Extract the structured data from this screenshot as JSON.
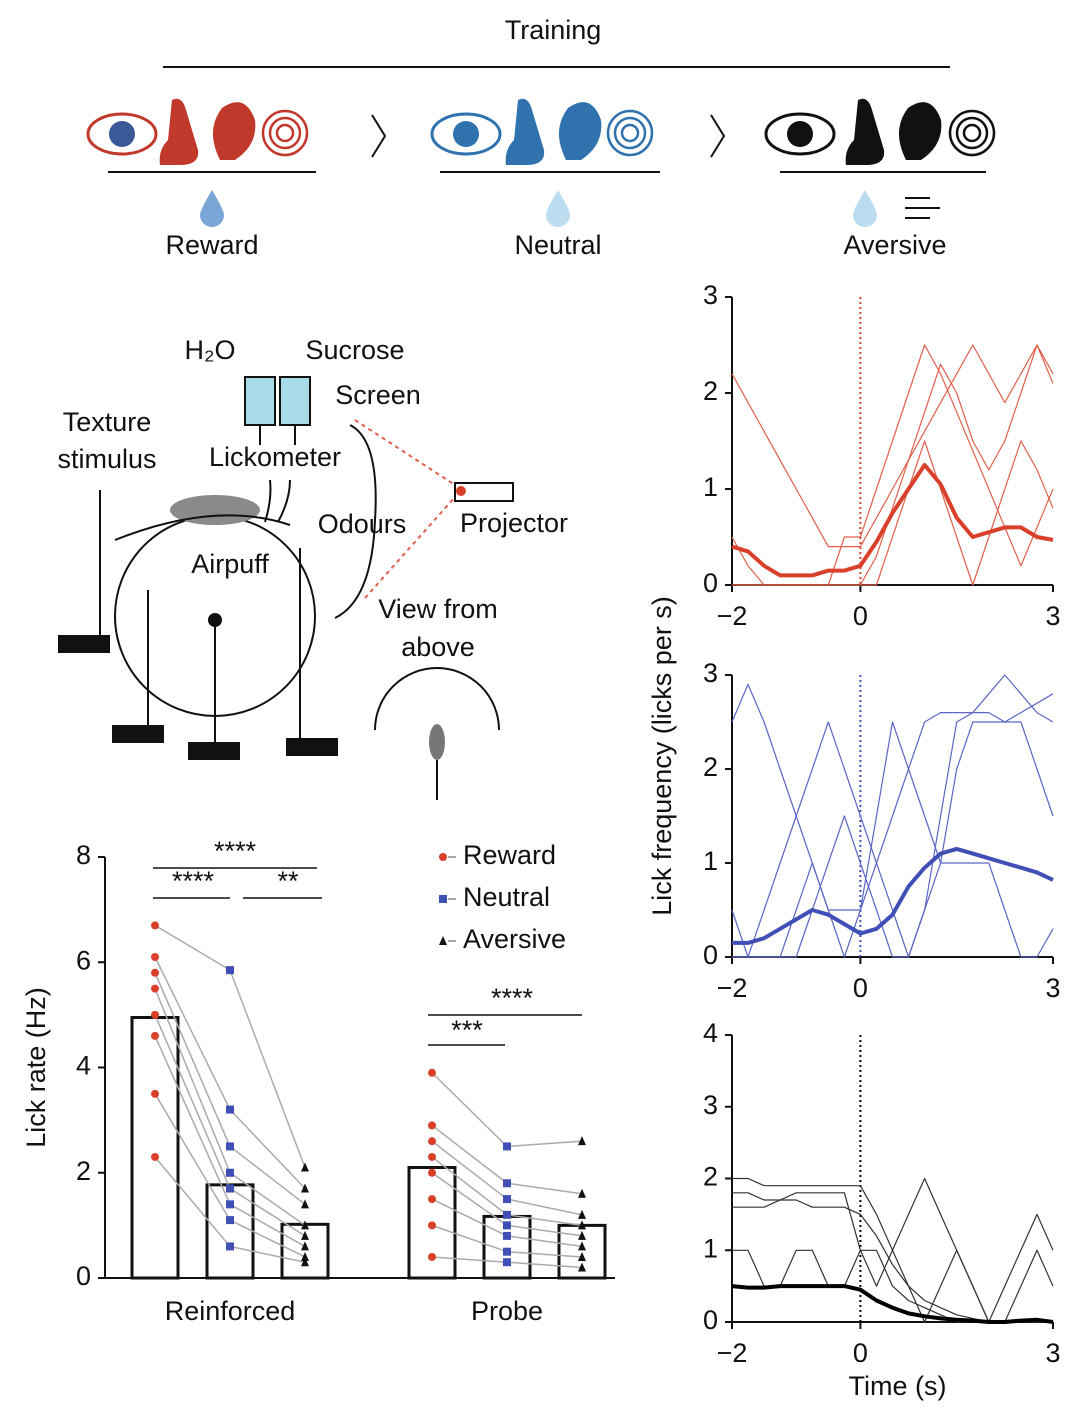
{
  "diagram": {
    "training": "Training",
    "reward": "Reward",
    "neutral": "Neutral",
    "aversive": "Aversive",
    "h2o": "H₂O",
    "sucrose": "Sucrose",
    "screen": "Screen",
    "texture_1": "Texture",
    "texture_2": "stimulus",
    "lickometer": "Lickometer",
    "odours": "Odours",
    "projector": "Projector",
    "airpuff": "Airpuff",
    "view_1": "View from",
    "view_2": "above"
  },
  "chart_data": [
    {
      "type": "bar",
      "ylabel": "Lick rate (Hz)",
      "categories": [
        "Reinforced",
        "Probe"
      ],
      "ylim": [
        0,
        8
      ],
      "yticks": [
        0,
        2,
        4,
        6,
        8
      ],
      "annotations": [
        "****",
        "****",
        "**",
        "***",
        "****"
      ],
      "series": [
        {
          "name": "Reward",
          "color": "#d9402b",
          "marker": "circle",
          "values": [
            4.95,
            2.1
          ],
          "points": [
            [
              6.7,
              6.1,
              5.8,
              5.5,
              5.0,
              4.6,
              3.5,
              2.3
            ],
            [
              3.9,
              2.9,
              2.6,
              2.3,
              2.0,
              1.5,
              1.0,
              0.4
            ]
          ]
        },
        {
          "name": "Neutral",
          "color": "#3f4fb5",
          "marker": "square",
          "values": [
            1.77,
            1.17
          ],
          "points": [
            [
              5.85,
              3.2,
              2.5,
              2.0,
              1.7,
              1.4,
              1.1,
              0.6
            ],
            [
              2.5,
              1.8,
              1.5,
              1.2,
              1.0,
              0.8,
              0.5,
              0.3
            ]
          ]
        },
        {
          "name": "Aversive",
          "color": "#111111",
          "marker": "triangle",
          "values": [
            1.02,
            1.0
          ],
          "points": [
            [
              2.1,
              1.7,
              1.4,
              1.0,
              0.8,
              0.6,
              0.4,
              0.3
            ],
            [
              2.6,
              1.6,
              1.2,
              1.0,
              0.8,
              0.6,
              0.4,
              0.2
            ]
          ]
        }
      ]
    },
    {
      "type": "line",
      "xlim": [
        -2,
        3
      ],
      "ylim": [
        0,
        3
      ],
      "vline": 0,
      "xticks": [
        {
          "value": -2,
          "label": "−2"
        },
        0,
        3
      ],
      "yticks": [
        0,
        1,
        2,
        3
      ],
      "x": [
        -2,
        -1.75,
        -1.5,
        -1.25,
        -1,
        -0.75,
        -0.5,
        -0.25,
        0,
        0.25,
        0.5,
        0.75,
        1,
        1.25,
        1.5,
        1.75,
        2,
        2.25,
        2.5,
        2.75,
        3
      ],
      "series": [
        {
          "color": "#e0604a",
          "line_width": 1.2,
          "values": [
            2.2,
            1.9,
            1.6,
            1.3,
            1.0,
            0.7,
            0.4,
            0.4,
            0.4,
            0.7,
            1.0,
            1.3,
            1.6,
            1.9,
            2.2,
            2.5,
            2.2,
            1.9,
            2.2,
            2.5,
            2.2
          ]
        },
        {
          "color": "#e0604a",
          "line_width": 1.2,
          "values": [
            0,
            0,
            0,
            0,
            0,
            0,
            0,
            0.5,
            0.5,
            1.0,
            1.5,
            2.0,
            2.5,
            2.2,
            1.8,
            1.4,
            1.0,
            0.6,
            0.2,
            0.6,
            1.0
          ]
        },
        {
          "color": "#e0604a",
          "line_width": 1.2,
          "values": [
            0.5,
            0.2,
            0,
            0,
            0,
            0,
            0,
            0,
            0,
            0,
            0.5,
            1.0,
            1.5,
            1.0,
            0.5,
            0,
            0.5,
            1.0,
            1.5,
            1.2,
            0.8
          ]
        },
        {
          "color": "#e0604a",
          "line_width": 1.2,
          "values": [
            0,
            0,
            0,
            0,
            0,
            0,
            0,
            0,
            0,
            0.3,
            0.8,
            1.3,
            1.8,
            2.3,
            2.0,
            1.5,
            1.2,
            1.5,
            2.0,
            2.5,
            2.1
          ]
        },
        {
          "color": "#d9402b",
          "line_width": 4,
          "values": [
            0.4,
            0.35,
            0.2,
            0.1,
            0.1,
            0.1,
            0.15,
            0.15,
            0.2,
            0.45,
            0.75,
            1.0,
            1.25,
            1.05,
            0.7,
            0.5,
            0.55,
            0.6,
            0.6,
            0.5,
            0.47
          ]
        }
      ]
    },
    {
      "type": "line",
      "ylabel": "Lick frequency (licks per s)",
      "xlim": [
        -2,
        3
      ],
      "ylim": [
        0,
        3
      ],
      "vline": 0,
      "xticks": [
        {
          "value": -2,
          "label": "−2"
        },
        0,
        3
      ],
      "yticks": [
        0,
        1,
        2,
        3
      ],
      "x": [
        -2,
        -1.75,
        -1.5,
        -1.25,
        -1,
        -0.75,
        -0.5,
        -0.25,
        0,
        0.25,
        0.5,
        0.75,
        1,
        1.25,
        1.5,
        1.75,
        2,
        2.25,
        2.5,
        2.75,
        3
      ],
      "series": [
        {
          "color": "#5a67c4",
          "line_width": 1.2,
          "values": [
            2.5,
            2.9,
            2.5,
            2.0,
            1.5,
            1.0,
            0.5,
            0.5,
            0.5,
            1.0,
            1.5,
            2.0,
            2.5,
            2.6,
            2.6,
            2.6,
            2.8,
            3.0,
            2.8,
            2.6,
            2.5
          ]
        },
        {
          "color": "#5a67c4",
          "line_width": 1.2,
          "values": [
            0.5,
            0,
            0.5,
            1.0,
            1.5,
            2.0,
            2.5,
            2.0,
            1.5,
            1.0,
            0.5,
            0,
            0.5,
            1.5,
            2.5,
            2.6,
            2.6,
            2.5,
            2.6,
            2.7,
            2.8
          ]
        },
        {
          "color": "#5a67c4",
          "line_width": 1.2,
          "values": [
            0,
            0,
            0,
            0,
            0.5,
            1.0,
            0.5,
            0,
            0.5,
            1.5,
            2.5,
            2.0,
            1.5,
            1.0,
            1.0,
            1.0,
            1.0,
            0.5,
            0,
            0,
            0.3
          ]
        },
        {
          "color": "#5a67c4",
          "line_width": 1.2,
          "values": [
            0,
            0,
            0,
            0,
            0,
            0.5,
            1.0,
            1.5,
            1.0,
            0.5,
            0,
            0,
            0.5,
            1.0,
            2.0,
            2.5,
            2.5,
            2.5,
            2.5,
            2.0,
            1.5
          ]
        },
        {
          "color": "#3f4fb5",
          "line_width": 4,
          "values": [
            0.15,
            0.15,
            0.2,
            0.3,
            0.4,
            0.5,
            0.45,
            0.35,
            0.25,
            0.3,
            0.45,
            0.75,
            0.95,
            1.1,
            1.15,
            1.1,
            1.05,
            1.0,
            0.95,
            0.9,
            0.82
          ]
        }
      ]
    },
    {
      "type": "line",
      "xlabel": "Time (s)",
      "xlim": [
        -2,
        3
      ],
      "ylim": [
        0,
        4
      ],
      "vline": 0,
      "xticks": [
        {
          "value": -2,
          "label": "−2"
        },
        0,
        3
      ],
      "yticks": [
        0,
        1,
        2,
        3,
        4
      ],
      "x": [
        -2,
        -1.75,
        -1.5,
        -1.25,
        -1,
        -0.75,
        -0.5,
        -0.25,
        0,
        0.25,
        0.5,
        0.75,
        1,
        1.25,
        1.5,
        1.75,
        2,
        2.25,
        2.5,
        2.75,
        3
      ],
      "series": [
        {
          "color": "#333333",
          "line_width": 1.2,
          "values": [
            2.0,
            2.0,
            1.9,
            1.9,
            1.9,
            1.9,
            1.9,
            1.9,
            1.9,
            1.5,
            1.0,
            0.5,
            0,
            0.5,
            1.0,
            0.5,
            0,
            0,
            0.5,
            1.0,
            0.5
          ]
        },
        {
          "color": "#333333",
          "line_width": 1.2,
          "values": [
            1.8,
            1.8,
            1.7,
            1.7,
            1.8,
            1.8,
            1.8,
            1.8,
            1.0,
            0.5,
            1.0,
            1.5,
            2.0,
            1.5,
            1.0,
            0.5,
            0,
            0,
            0,
            0,
            0
          ]
        },
        {
          "color": "#333333",
          "line_width": 1.2,
          "values": [
            1.0,
            1.0,
            0.5,
            0.5,
            1.0,
            1.0,
            0.5,
            0.5,
            1.0,
            1.0,
            0.5,
            0.3,
            0.2,
            0.1,
            0,
            0,
            0,
            0.5,
            1.0,
            1.5,
            1.0
          ]
        },
        {
          "color": "#333333",
          "line_width": 1.2,
          "values": [
            1.6,
            1.6,
            1.6,
            1.7,
            1.7,
            1.6,
            1.6,
            1.6,
            1.5,
            1.2,
            0.8,
            0.5,
            0.3,
            0.2,
            0.1,
            0.05,
            0,
            0,
            0,
            0,
            0
          ]
        },
        {
          "color": "#000000",
          "line_width": 4,
          "values": [
            0.5,
            0.48,
            0.48,
            0.5,
            0.5,
            0.5,
            0.5,
            0.5,
            0.45,
            0.3,
            0.2,
            0.12,
            0.08,
            0.05,
            0.03,
            0.02,
            0,
            0,
            0.02,
            0.03,
            0
          ]
        }
      ]
    }
  ]
}
